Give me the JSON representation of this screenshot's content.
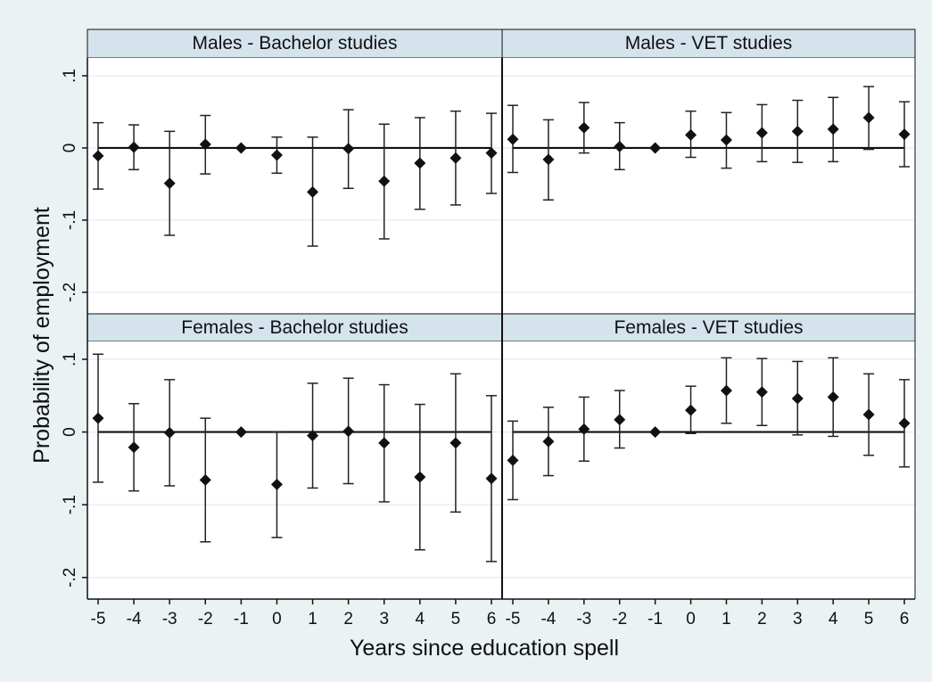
{
  "chart_data": {
    "type": "scatter",
    "description_style": "event-study point estimates with confidence intervals, 2x2 panels",
    "xlabel": "Years since education spell",
    "ylabel": "Probability of employment",
    "x": [
      -5,
      -4,
      -3,
      -2,
      -1,
      0,
      1,
      2,
      3,
      4,
      5,
      6
    ],
    "x_tick_labels": [
      "-5",
      "-4",
      "-3",
      "-2",
      "-1",
      "0",
      "1",
      "2",
      "3",
      "4",
      "5",
      "6"
    ],
    "y_ticks": [
      0.1,
      0,
      -0.1,
      -0.2
    ],
    "y_tick_labels": [
      ".1",
      "0",
      "-.1",
      "-.2"
    ],
    "ylim": [
      -0.215,
      0.1
    ],
    "zero_line": true,
    "panels": [
      {
        "title": "Males - Bachelor studies",
        "estimate": [
          -0.011,
          0.001,
          -0.049,
          0.005,
          0.0,
          -0.01,
          -0.061,
          -0.001,
          -0.046,
          -0.021,
          -0.014,
          -0.007
        ],
        "ci_low": [
          -0.057,
          -0.03,
          -0.121,
          -0.036,
          0.0,
          -0.035,
          -0.136,
          -0.056,
          -0.126,
          -0.085,
          -0.079,
          -0.063
        ],
        "ci_high": [
          0.035,
          0.032,
          0.023,
          0.045,
          0.0,
          0.015,
          0.015,
          0.053,
          0.033,
          0.042,
          0.051,
          0.048
        ]
      },
      {
        "title": "Males - VET studies",
        "estimate": [
          0.012,
          -0.016,
          0.028,
          0.002,
          0.0,
          0.018,
          0.011,
          0.021,
          0.023,
          0.026,
          0.042,
          0.019
        ],
        "ci_low": [
          -0.034,
          -0.072,
          -0.007,
          -0.03,
          0.0,
          -0.013,
          -0.028,
          -0.019,
          -0.02,
          -0.019,
          -0.002,
          -0.026
        ],
        "ci_high": [
          0.059,
          0.039,
          0.063,
          0.035,
          0.0,
          0.051,
          0.049,
          0.06,
          0.066,
          0.07,
          0.085,
          0.064
        ]
      },
      {
        "title": "Females - Bachelor studies",
        "estimate": [
          0.019,
          -0.021,
          -0.001,
          -0.066,
          0.0,
          -0.072,
          -0.005,
          0.001,
          -0.015,
          -0.062,
          -0.015,
          -0.064
        ],
        "ci_low": [
          -0.069,
          -0.081,
          -0.074,
          -0.151,
          0.0,
          -0.145,
          -0.077,
          -0.071,
          -0.096,
          -0.162,
          -0.11,
          -0.178
        ],
        "ci_high": [
          0.107,
          0.039,
          0.072,
          0.019,
          0.0,
          0.0,
          0.067,
          0.074,
          0.065,
          0.038,
          0.08,
          0.05
        ]
      },
      {
        "title": "Females - VET studies",
        "estimate": [
          -0.039,
          -0.013,
          0.004,
          0.017,
          0.0,
          0.03,
          0.057,
          0.055,
          0.046,
          0.048,
          0.024,
          0.012
        ],
        "ci_low": [
          -0.093,
          -0.06,
          -0.04,
          -0.022,
          0.0,
          -0.002,
          0.012,
          0.009,
          -0.004,
          -0.006,
          -0.032,
          -0.048
        ],
        "ci_high": [
          0.015,
          0.034,
          0.048,
          0.057,
          0.0,
          0.063,
          0.102,
          0.101,
          0.097,
          0.102,
          0.08,
          0.072
        ]
      }
    ],
    "colors": {
      "outer_background": "#eaf2f3",
      "plot_background": "#ffffff",
      "strip_background": "#d5e3ed",
      "marker": "#111111",
      "grid": "#e6eef2"
    }
  }
}
